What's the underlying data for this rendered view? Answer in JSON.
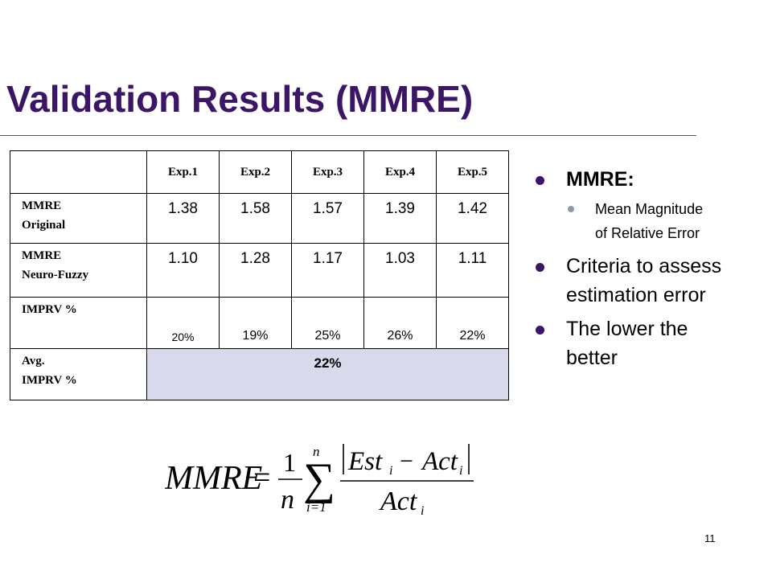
{
  "slide": {
    "title": "Validation Results (MMRE)",
    "page_number": "11"
  },
  "table": {
    "headers": [
      "",
      "Exp.1",
      "Exp.2",
      "Exp.3",
      "Exp.4",
      "Exp.5"
    ],
    "rows": [
      {
        "label_line1": "MMRE",
        "label_line2": "Original",
        "values": [
          "1.38",
          "1.58",
          "1.57",
          "1.39",
          "1.42"
        ]
      },
      {
        "label_line1": "MMRE",
        "label_line2": "Neuro-Fuzzy",
        "values": [
          "1.10",
          "1.28",
          "1.17",
          "1.03",
          "1.11"
        ]
      },
      {
        "label_line1": "IMPRV %",
        "label_line2": "",
        "values": [
          "20%",
          "19%",
          "25%",
          "26%",
          "22%"
        ]
      },
      {
        "label_line1": "Avg.",
        "label_line2": "IMPRV %",
        "average": "22%"
      }
    ],
    "avg_highlight_color": "#d9d9ec"
  },
  "bullets": [
    {
      "text": "MMRE:",
      "sub": [
        {
          "line1": "Mean Magnitude",
          "line2": "of Relative Error"
        }
      ]
    },
    {
      "line1": "Criteria to assess",
      "line2": "estimation error"
    },
    {
      "line1": "The lower the",
      "line2": "better"
    }
  ],
  "formula": {
    "lhs": "MMRE",
    "equals": "=",
    "frac_num": "1",
    "frac_den": "n",
    "sum_upper": "n",
    "sum_lower": "i=1",
    "numerator": "|Est_i - Act_i|",
    "denominator": "Act_i",
    "est": "Est",
    "act": "Act",
    "sub_i": "i",
    "minus": "−",
    "sum_symbol": "∑"
  },
  "colors": {
    "title": "#3b1566",
    "bullet": "#3b1566",
    "sub_bullet": "#8e9aa8"
  }
}
